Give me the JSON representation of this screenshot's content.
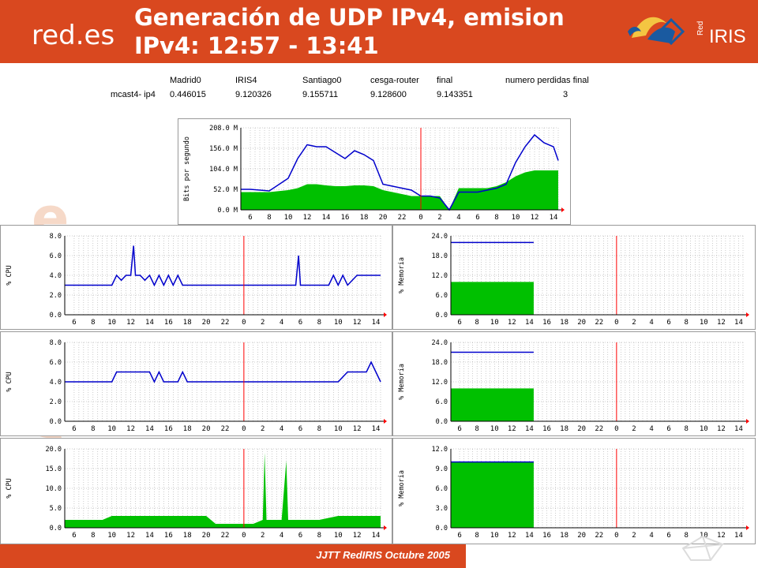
{
  "header": {
    "logo_left": "red.es",
    "title_line1": "Generación de UDP IPv4, emision",
    "title_line2": "IPv4: 12:57 - 13:41",
    "logo_right": "RedIRIS",
    "logo_right_small": "Red",
    "logo_right_big": "IRIS"
  },
  "table": {
    "headers": [
      "Madrid0",
      "IRIS4",
      "Santiago0",
      "cesga-router",
      "final",
      "numero perdidas final"
    ],
    "row_label": "mcast4- ip4",
    "values": [
      "0.446015",
      "9.120326",
      "9.155711",
      "9.128600",
      "9.143351",
      "3"
    ]
  },
  "footer": {
    "text": "JJTT RedIRIS Octubre 2005"
  },
  "colors": {
    "header_bg": "#d9481f",
    "plot_line": "#0000cc",
    "plot_fill": "#00c000",
    "marker": "#ff0000",
    "grid": "#999999"
  },
  "x_ticks": [
    "6",
    "8",
    "10",
    "12",
    "14",
    "16",
    "18",
    "20",
    "22",
    "0",
    "2",
    "4",
    "6",
    "8",
    "10",
    "12",
    "14"
  ],
  "chart_data": [
    {
      "type": "area",
      "name": "traffic",
      "ylabel": "Bits por segundo",
      "yticks": [
        "208.0 M",
        "156.0 M",
        "104.0 M",
        "52.0 M",
        "0.0 M"
      ],
      "ylim": [
        0,
        208
      ],
      "x_hours": [
        5,
        6,
        8,
        10,
        11,
        12,
        13,
        14,
        15,
        16,
        17,
        18,
        19,
        20,
        21,
        22,
        23,
        0,
        1,
        2,
        3,
        4,
        5,
        6,
        7,
        8,
        9,
        10,
        11,
        12,
        13,
        14,
        14.5
      ],
      "series": [
        {
          "name": "in",
          "values": [
            45,
            45,
            45,
            50,
            55,
            65,
            65,
            62,
            60,
            60,
            62,
            62,
            60,
            50,
            45,
            40,
            35,
            35,
            35,
            35,
            0,
            55,
            55,
            55,
            55,
            60,
            70,
            85,
            95,
            100,
            100,
            100,
            100
          ]
        },
        {
          "name": "out",
          "values": [
            52,
            52,
            48,
            80,
            130,
            165,
            160,
            160,
            145,
            130,
            150,
            140,
            125,
            65,
            60,
            55,
            50,
            35,
            35,
            30,
            0,
            45,
            45,
            45,
            50,
            55,
            65,
            120,
            160,
            190,
            170,
            160,
            125
          ]
        }
      ]
    },
    {
      "type": "line",
      "name": "cpu1",
      "ylabel": "% CPU",
      "yticks": [
        "8.0",
        "6.0",
        "4.0",
        "2.0",
        "0.0"
      ],
      "ylim": [
        0,
        8
      ],
      "x_hours": [
        5,
        6,
        7,
        9,
        10,
        10.5,
        11,
        11.5,
        12,
        12.3,
        12.5,
        13,
        13.5,
        14,
        14.5,
        15,
        15.5,
        16,
        16.5,
        17,
        17.5,
        18,
        20,
        22,
        0,
        2,
        4,
        5.5,
        5.8,
        6,
        7,
        8,
        9,
        9.5,
        10,
        10.5,
        11,
        12,
        13,
        14,
        14.5
      ],
      "values": [
        3.0,
        3.0,
        3.0,
        3.0,
        3.0,
        4.0,
        3.5,
        4.0,
        4.0,
        7.0,
        4.0,
        4.0,
        3.5,
        4.0,
        3.0,
        4.0,
        3.0,
        4.0,
        3.0,
        4.0,
        3.0,
        3.0,
        3.0,
        3.0,
        3.0,
        3.0,
        3.0,
        3.0,
        6.0,
        3.0,
        3.0,
        3.0,
        3.0,
        4.0,
        3.0,
        4.0,
        3.0,
        4.0,
        4.0,
        4.0,
        4.0
      ]
    },
    {
      "type": "area",
      "name": "mem1",
      "ylabel": "% Memoria",
      "yticks": [
        "24.0",
        "18.0",
        "12.0",
        "6.0",
        "0.0"
      ],
      "ylim": [
        0,
        24
      ],
      "x_hours": [
        5,
        14.5
      ],
      "series": [
        {
          "name": "fill",
          "values": [
            10,
            10
          ]
        },
        {
          "name": "line",
          "values": [
            22,
            22
          ]
        }
      ]
    },
    {
      "type": "line",
      "name": "cpu2",
      "ylabel": "% CPU",
      "yticks": [
        "8.0",
        "6.0",
        "4.0",
        "2.0",
        "0.0"
      ],
      "ylim": [
        0,
        8
      ],
      "x_hours": [
        5,
        6,
        8,
        10,
        10.5,
        11,
        12,
        13,
        14,
        14.5,
        15,
        15.5,
        16,
        17,
        17.5,
        18,
        20,
        22,
        0,
        2,
        4,
        6,
        8,
        10,
        11,
        12,
        13,
        13.5,
        14,
        14.5
      ],
      "values": [
        4,
        4,
        4,
        4,
        5,
        5,
        5,
        5,
        5,
        4,
        5,
        4,
        4,
        4,
        5,
        4,
        4,
        4,
        4,
        4,
        4,
        4,
        4,
        4,
        5,
        5,
        5,
        6,
        5,
        4
      ]
    },
    {
      "type": "area",
      "name": "mem2",
      "ylabel": "% Memoria",
      "yticks": [
        "24.0",
        "18.0",
        "12.0",
        "6.0",
        "0.0"
      ],
      "ylim": [
        0,
        24
      ],
      "x_hours": [
        5,
        14.5
      ],
      "series": [
        {
          "name": "fill",
          "values": [
            10,
            10
          ]
        },
        {
          "name": "line",
          "values": [
            21,
            21
          ]
        }
      ]
    },
    {
      "type": "area",
      "name": "cpu3",
      "ylabel": "% CPU",
      "yticks": [
        "20.0",
        "15.0",
        "10.0",
        "5.0",
        "0.0"
      ],
      "ylim": [
        0,
        20
      ],
      "x_hours": [
        5,
        8,
        9,
        10,
        14,
        16,
        18,
        20,
        21,
        22,
        23,
        0,
        1,
        2,
        2.2,
        2.4,
        3,
        4,
        4.5,
        4.7,
        5,
        6,
        8,
        10,
        12,
        14,
        14.5
      ],
      "values": [
        2,
        2,
        2,
        3,
        3,
        3,
        3,
        3,
        1,
        1,
        1,
        1,
        1,
        2,
        19,
        2,
        2,
        2,
        17,
        2,
        2,
        2,
        2,
        3,
        3,
        3,
        3
      ]
    },
    {
      "type": "area",
      "name": "mem3",
      "ylabel": "% Memoria",
      "yticks": [
        "12.0",
        "9.0",
        "6.0",
        "3.0",
        "0.0"
      ],
      "ylim": [
        0,
        12
      ],
      "x_hours": [
        5,
        14.5
      ],
      "series": [
        {
          "name": "fill",
          "values": [
            10,
            10
          ]
        },
        {
          "name": "line",
          "values": [
            10,
            10
          ]
        }
      ]
    }
  ]
}
